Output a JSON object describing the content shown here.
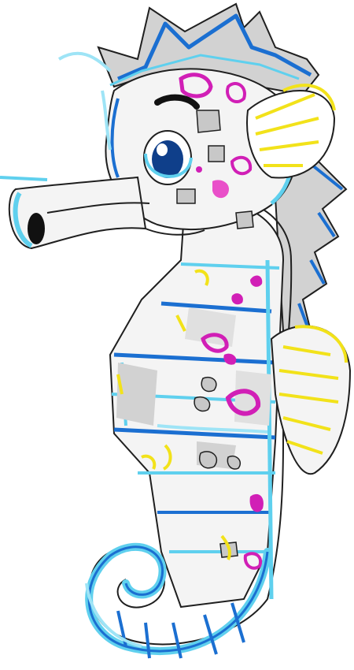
{
  "image": {
    "subject": "seahorse",
    "colors": {
      "outline": "#1f1f1f",
      "grey": "#d2d2d2",
      "light_grey": "#ececec",
      "blue": "#1b6fd1",
      "cyan": "#5fd0ee",
      "sky": "#9ee4f6",
      "magenta": "#d11fb6",
      "pink": "#e94fc9",
      "yellow": "#f2e21a",
      "eye": "#0f3f8a"
    }
  }
}
